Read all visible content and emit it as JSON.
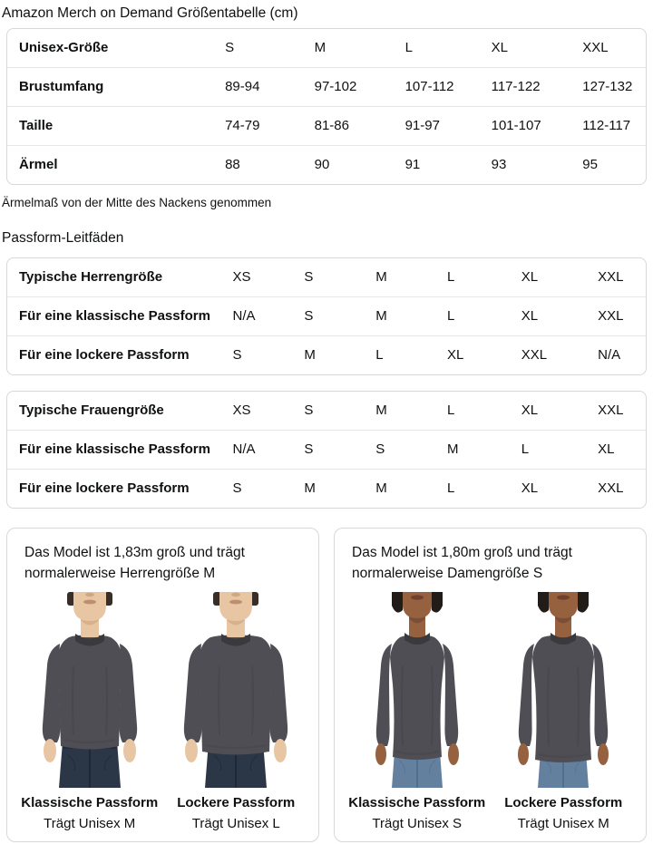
{
  "page": {
    "title": "Amazon Merch on Demand Größentabelle (cm)",
    "sleeve_note": "Ärmelmaß von der Mitte des Nackens genommen",
    "fit_guides_title": "Passform-Leitfäden"
  },
  "size_table": {
    "rows": [
      {
        "label": "Unisex-Größe",
        "values": [
          "S",
          "M",
          "L",
          "XL",
          "XXL"
        ]
      },
      {
        "label": "Brustumfang",
        "values": [
          "89-94",
          "97-102",
          "107-112",
          "117-122",
          "127-132"
        ]
      },
      {
        "label": "Taille",
        "values": [
          "74-79",
          "81-86",
          "91-97",
          "101-107",
          "112-117"
        ]
      },
      {
        "label": "Ärmel",
        "values": [
          "88",
          "90",
          "91",
          "93",
          "95"
        ]
      }
    ]
  },
  "fit_tables": [
    {
      "id": "men",
      "rows": [
        {
          "label": "Typische Herrengröße",
          "values": [
            "XS",
            "S",
            "M",
            "L",
            "XL",
            "XXL"
          ]
        },
        {
          "label": "Für eine klassische Passform",
          "values": [
            "N/A",
            "S",
            "M",
            "L",
            "XL",
            "XXL"
          ]
        },
        {
          "label": "Für eine lockere Passform",
          "values": [
            "S",
            "M",
            "L",
            "XL",
            "XXL",
            "N/A"
          ]
        }
      ]
    },
    {
      "id": "women",
      "rows": [
        {
          "label": "Typische Frauengröße",
          "values": [
            "XS",
            "S",
            "M",
            "L",
            "XL",
            "XXL"
          ]
        },
        {
          "label": "Für eine klassische Passform",
          "values": [
            "N/A",
            "S",
            "S",
            "M",
            "L",
            "XL"
          ]
        },
        {
          "label": "Für eine lockere Passform",
          "values": [
            "S",
            "M",
            "M",
            "L",
            "XL",
            "XXL"
          ]
        }
      ]
    }
  ],
  "model_cards": [
    {
      "model": "male",
      "description": "Das Model ist 1,83m groß und trägt normalerweise Herrengröße M",
      "figures": [
        {
          "fit": "classic",
          "fit_label": "Klassische Passform",
          "wears": "Trägt Unisex M"
        },
        {
          "fit": "loose",
          "fit_label": "Lockere Passform",
          "wears": "Trägt Unisex L"
        }
      ]
    },
    {
      "model": "female",
      "description": "Das Model ist 1,80m groß und trägt normalerweise Damengröße S",
      "figures": [
        {
          "fit": "classic",
          "fit_label": "Klassische Passform",
          "wears": "Trägt Unisex S"
        },
        {
          "fit": "loose",
          "fit_label": "Lockere Passform",
          "wears": "Trägt Unisex M"
        }
      ]
    }
  ],
  "colors": {
    "text": "#0F1111",
    "table_border": "#D5D9D9",
    "row_divider": "#E7E7E7",
    "shirt": "#4F4E54",
    "shirt_fold": "#3F3E44",
    "collar": "#3A393E",
    "male_skin": "#E8C6A4",
    "male_skin_shadow": "#C9A076",
    "male_hair": "#382E27",
    "male_jeans": "#2B3647",
    "male_jeans_dark": "#1C2430",
    "female_skin": "#95613F",
    "female_skin_shadow": "#6E4130",
    "female_hair": "#221C19",
    "female_jeans": "#64809F",
    "female_jeans_dark": "#49688A"
  }
}
